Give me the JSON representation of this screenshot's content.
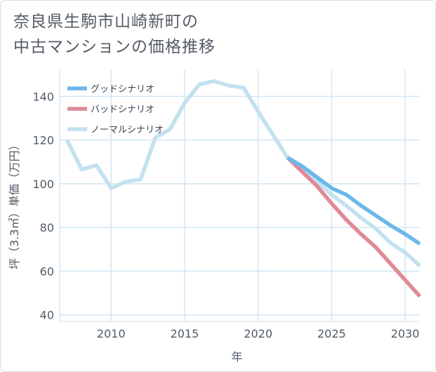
{
  "title_line1": "奈良県生駒市山崎新町の",
  "title_line2": "中古マンションの価格推移",
  "chart_data": {
    "type": "line",
    "title": "奈良県生駒市山崎新町の中古マンションの価格推移",
    "xlabel": "年",
    "ylabel": "坪（3.3㎡）単価（万円）",
    "xlim": [
      2006.5,
      2031
    ],
    "ylim": [
      37,
      152
    ],
    "xticks": [
      2010,
      2015,
      2020,
      2025,
      2030
    ],
    "yticks": [
      40,
      60,
      80,
      100,
      120,
      140
    ],
    "grid": true,
    "legend_position": "top-left",
    "series": [
      {
        "name": "グッドシナリオ",
        "color": "#6cb8ea",
        "x": [
          2022,
          2023,
          2024,
          2025,
          2026,
          2027,
          2028,
          2029,
          2030,
          2031
        ],
        "y": [
          112,
          108,
          103,
          98,
          95,
          90,
          85.5,
          81,
          77,
          72.5
        ]
      },
      {
        "name": "バッドシナリオ",
        "color": "#df8a96",
        "x": [
          2022,
          2023,
          2024,
          2025,
          2026,
          2027,
          2028,
          2029,
          2030,
          2031
        ],
        "y": [
          112,
          105.5,
          99,
          91,
          83.5,
          77,
          71,
          63.5,
          56,
          48.5
        ]
      },
      {
        "name": "ノーマルシナリオ",
        "color": "#c3e1ef",
        "x": [
          2007,
          2008,
          2009,
          2010,
          2011,
          2012,
          2013,
          2014,
          2015,
          2016,
          2017,
          2018,
          2019,
          2020,
          2021,
          2022,
          2023,
          2024,
          2025,
          2026,
          2027,
          2028,
          2029,
          2030,
          2031
        ],
        "y": [
          120,
          106.5,
          108.5,
          98,
          101,
          102,
          121,
          125,
          137,
          145.5,
          147,
          145,
          144,
          133,
          122.5,
          112,
          106.5,
          101,
          95,
          90,
          84.5,
          79.5,
          73,
          68.5,
          62.5
        ]
      }
    ]
  }
}
